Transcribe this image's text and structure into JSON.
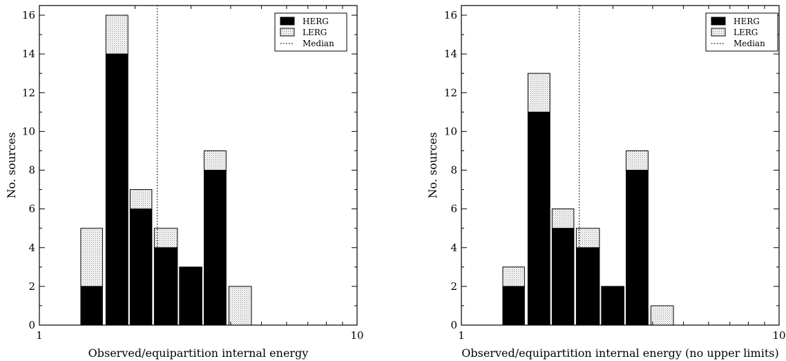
{
  "chart_data": [
    {
      "type": "bar",
      "stacked": true,
      "xscale": "log",
      "xlim": [
        1,
        10
      ],
      "ylim": [
        0,
        16.5
      ],
      "xticks": [
        "1",
        "10"
      ],
      "yticks": [
        "0",
        "2",
        "4",
        "6",
        "8",
        "10",
        "12",
        "14",
        "16"
      ],
      "xlabel": "Observed/equipartition internal energy",
      "ylabel": "No. sources",
      "bins": [
        [
          1.35,
          1.58
        ],
        [
          1.62,
          1.9
        ],
        [
          1.93,
          2.26
        ],
        [
          2.3,
          2.72
        ],
        [
          2.76,
          3.25
        ],
        [
          3.3,
          3.87
        ],
        [
          3.95,
          4.65
        ]
      ],
      "series": [
        {
          "name": "HERG",
          "values": [
            2,
            14,
            6,
            4,
            3,
            8,
            0
          ],
          "color": "#000000"
        },
        {
          "name": "LERG",
          "values": [
            3,
            2,
            1,
            1,
            0,
            1,
            2
          ],
          "color": "stippled"
        }
      ],
      "median": 2.35,
      "legend": {
        "position": "top-right",
        "entries": [
          "HERG",
          "LERG",
          "Median"
        ]
      },
      "grid": false
    },
    {
      "type": "bar",
      "stacked": true,
      "xscale": "log",
      "xlim": [
        1,
        10
      ],
      "ylim": [
        0,
        16.5
      ],
      "xticks": [
        "1",
        "10"
      ],
      "yticks": [
        "0",
        "2",
        "4",
        "6",
        "8",
        "10",
        "12",
        "14",
        "16"
      ],
      "xlabel": "Observed/equipartition internal energy (no upper limits)",
      "ylabel": "No. sources",
      "bins": [
        [
          1.35,
          1.58
        ],
        [
          1.62,
          1.9
        ],
        [
          1.93,
          2.26
        ],
        [
          2.3,
          2.72
        ],
        [
          2.76,
          3.25
        ],
        [
          3.3,
          3.87
        ],
        [
          3.95,
          4.65
        ]
      ],
      "series": [
        {
          "name": "HERG",
          "values": [
            2,
            11,
            5,
            4,
            2,
            8,
            0
          ],
          "color": "#000000"
        },
        {
          "name": "LERG",
          "values": [
            1,
            2,
            1,
            1,
            0,
            1,
            1
          ],
          "color": "stippled"
        }
      ],
      "median": 2.35,
      "legend": {
        "position": "top-right",
        "entries": [
          "HERG",
          "LERG",
          "Median"
        ]
      },
      "grid": false
    }
  ]
}
